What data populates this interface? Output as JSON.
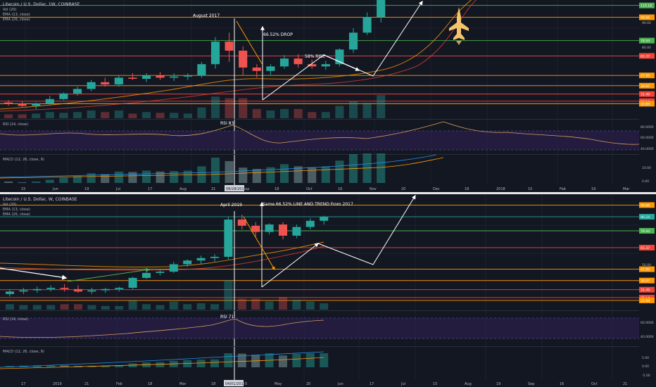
{
  "top": {
    "header": {
      "title": "Litecoin / U.S. Dollar, 1W, COINBASE",
      "indicators": [
        "Vol (20)",
        "EMA (13, close)",
        "EMA (26, close)"
      ]
    },
    "annotations": {
      "month_label": "August 2017",
      "drop_label": "66.52% DROP",
      "rise_label": "58% RISE",
      "rsi_label": "RSI 83"
    },
    "rsi_title": "RSI (14, close)",
    "macd_title": "MACD (12, 26, close, 9)",
    "date_tag": "08/28/2017",
    "price_levels": [
      {
        "label": "110.18",
        "color": "#4caf50"
      },
      {
        "label": "99.66",
        "color": "#ff9800"
      },
      {
        "label": "78.94",
        "color": "#4caf50"
      },
      {
        "label": "65.37",
        "color": "#f44336"
      },
      {
        "label": "47.99",
        "color": "#ff9800"
      },
      {
        "label": "38.87",
        "color": "#ff9800"
      },
      {
        "label": "31.49",
        "color": "#f44336"
      },
      {
        "label": "25.14",
        "color": "#f44336"
      },
      {
        "label": "22.89",
        "color": "#ff9800"
      }
    ],
    "price_ticks": [
      "90.00",
      "80.00",
      "50.00"
    ],
    "rsi_ticks": [
      "80.0000",
      "60.0000",
      "40.0000"
    ],
    "macd_ticks": [
      "10.00",
      "0.00"
    ],
    "x_ticks": [
      "15",
      "Jun",
      "19",
      "Jul",
      "17",
      "Aug",
      "21",
      "Sep",
      "18",
      "Oct",
      "16",
      "Nov",
      "20",
      "Dec",
      "18",
      "2018",
      "15",
      "Feb",
      "19",
      "Mar"
    ]
  },
  "bottom": {
    "header": {
      "title": "Litecoin / U.S. Dollar, W, COINBASE",
      "indicators": [
        "Vol (20)",
        "EMA (13, close)",
        "EMA (26, close)"
      ]
    },
    "annotations": {
      "month_label": "April 2019",
      "trend_label": "Same 66.52% LINE AND TREND From 2017",
      "rsi_label": "RSI 71"
    },
    "rsi_title": "RSI (14, close)",
    "macd_title": "MACD (12, 26, close, 9)",
    "date_tag": "04/01/2019",
    "price_levels": [
      {
        "label": "99.66",
        "color": "#ff9800"
      },
      {
        "label": "90.24",
        "color": "#26a69a"
      },
      {
        "label": "78.94",
        "color": "#4caf50"
      },
      {
        "label": "65.37",
        "color": "#f44336"
      },
      {
        "label": "47.99",
        "color": "#ff9800"
      },
      {
        "label": "38.87",
        "color": "#ff9800"
      },
      {
        "label": "31.49",
        "color": "#f44336"
      },
      {
        "label": "25.14",
        "color": "#f44336"
      },
      {
        "label": "22.89",
        "color": "#ff9800"
      }
    ],
    "price_ticks": [
      "50.00"
    ],
    "rsi_ticks": [
      "60.0000",
      "40.0000"
    ],
    "macd_ticks": [
      "5.00",
      "0.00",
      "-5.00"
    ],
    "x_ticks": [
      "17",
      "2019",
      "21",
      "Feb",
      "18",
      "Mar",
      "18",
      "15",
      "May",
      "20",
      "Jun",
      "17",
      "Jul",
      "15",
      "Aug",
      "19",
      "Sep",
      "16",
      "Oct",
      "21"
    ]
  },
  "chart_data": [
    {
      "type": "candlestick",
      "title": "Litecoin / U.S. Dollar, 1W, COINBASE",
      "ohlc": [
        [
          24,
          26,
          21,
          23
        ],
        [
          23,
          25,
          20,
          21
        ],
        [
          21,
          24,
          18,
          23
        ],
        [
          23,
          30,
          22,
          27
        ],
        [
          27,
          33,
          26,
          32
        ],
        [
          32,
          38,
          30,
          36
        ],
        [
          36,
          44,
          34,
          42
        ],
        [
          42,
          46,
          38,
          40
        ],
        [
          40,
          48,
          38,
          46
        ],
        [
          46,
          50,
          44,
          45
        ],
        [
          45,
          50,
          42,
          48
        ],
        [
          48,
          51,
          44,
          46
        ],
        [
          46,
          50,
          43,
          47
        ],
        [
          47,
          50,
          44,
          48
        ],
        [
          48,
          60,
          46,
          58
        ],
        [
          58,
          82,
          54,
          78
        ],
        [
          78,
          86,
          60,
          70
        ],
        [
          70,
          74,
          48,
          55
        ],
        [
          55,
          58,
          46,
          52
        ],
        [
          52,
          58,
          48,
          56
        ],
        [
          56,
          66,
          54,
          63
        ],
        [
          63,
          67,
          55,
          58
        ],
        [
          58,
          62,
          54,
          56
        ],
        [
          56,
          61,
          53,
          58
        ],
        [
          58,
          72,
          56,
          71
        ],
        [
          71,
          90,
          68,
          86
        ],
        [
          86,
          104,
          84,
          100
        ],
        [
          100,
          125,
          95,
          118
        ]
      ],
      "levels": [
        110.18,
        99.66,
        78.94,
        65.37,
        47.99,
        38.87,
        31.49,
        25.14,
        22.89
      ],
      "ylim": [
        20,
        115
      ]
    },
    {
      "type": "candlestick",
      "title": "Litecoin / U.S. Dollar, W, COINBASE",
      "ohlc": [
        [
          28,
          32,
          26,
          30
        ],
        [
          30,
          33,
          28,
          31
        ],
        [
          31,
          34,
          29,
          32
        ],
        [
          32,
          35,
          30,
          33
        ],
        [
          33,
          36,
          30,
          32
        ],
        [
          32,
          35,
          29,
          30
        ],
        [
          30,
          33,
          28,
          31
        ],
        [
          31,
          33,
          29,
          32
        ],
        [
          32,
          34,
          30,
          33
        ],
        [
          33,
          42,
          32,
          41
        ],
        [
          41,
          46,
          40,
          45
        ],
        [
          45,
          48,
          43,
          46
        ],
        [
          46,
          54,
          45,
          52
        ],
        [
          52,
          56,
          50,
          55
        ],
        [
          55,
          59,
          52,
          57
        ],
        [
          57,
          60,
          54,
          58
        ],
        [
          58,
          90,
          56,
          88
        ],
        [
          88,
          92,
          80,
          83
        ],
        [
          83,
          86,
          74,
          78
        ],
        [
          78,
          85,
          76,
          84
        ],
        [
          84,
          86,
          72,
          75
        ],
        [
          75,
          84,
          73,
          82
        ],
        [
          82,
          89,
          80,
          87
        ],
        [
          87,
          91,
          84,
          90
        ]
      ],
      "levels": [
        99.66,
        90.24,
        78.94,
        65.37,
        47.99,
        38.87,
        31.49,
        25.14,
        22.89
      ],
      "ylim": [
        20,
        105
      ]
    }
  ]
}
